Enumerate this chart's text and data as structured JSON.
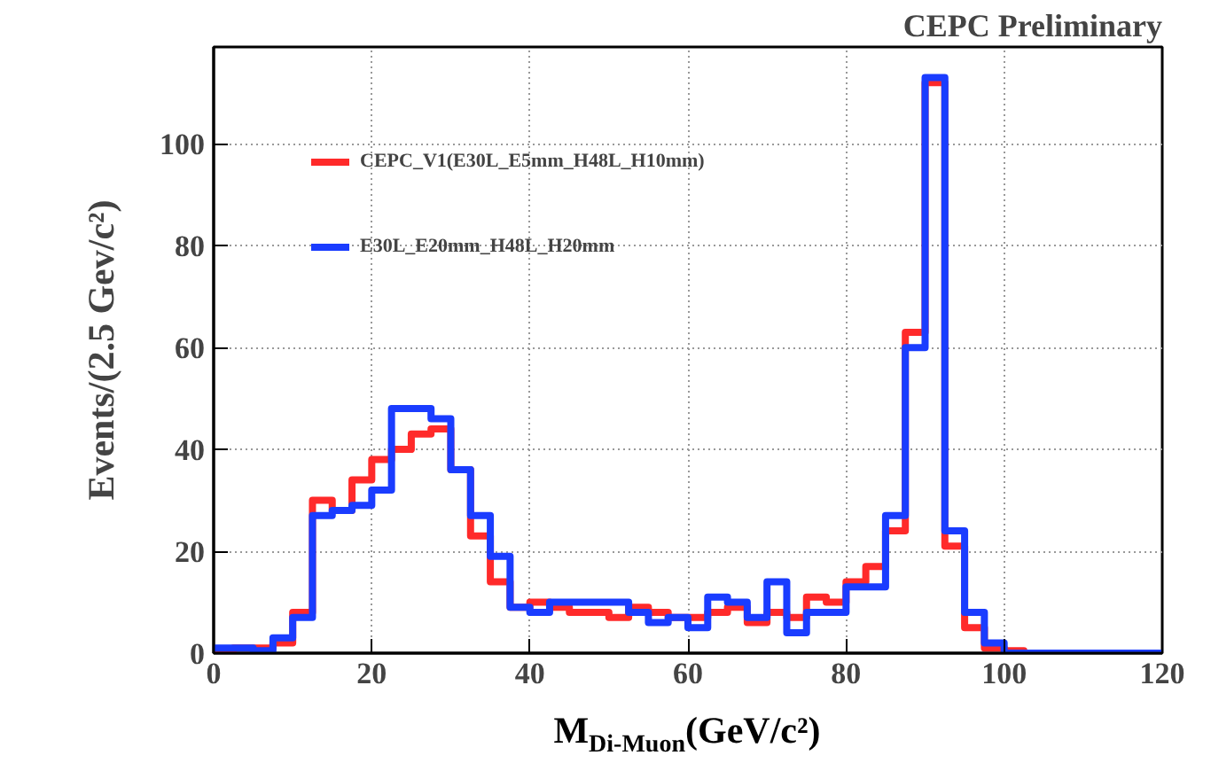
{
  "chart_data": {
    "type": "histogram",
    "title": "CEPC Preliminary",
    "xlabel": "M$_{Di-Muon}$(GeV/c²)",
    "ylabel": "Events/(2.5 Gev/c²)",
    "bins": [
      0,
      2.5,
      5,
      7.5,
      10,
      12.5,
      15,
      17.5,
      20,
      22.5,
      25,
      27.5,
      30,
      32.5,
      35,
      37.5,
      40,
      42.5,
      45,
      47.5,
      50,
      52.5,
      55,
      57.5,
      60,
      62.5,
      65,
      67.5,
      70,
      72.5,
      75,
      77.5,
      80,
      82.5,
      85,
      87.5,
      90,
      92.5,
      95,
      97.5,
      100,
      102.5,
      105,
      107.5,
      110,
      112.5,
      115,
      117.5,
      120
    ],
    "series": [
      {
        "name": "CEPC_V1(E30L_E5mm_H48L_H10mm)",
        "color": "#ff2a2a",
        "values": [
          0.5,
          1,
          1,
          2,
          8,
          30,
          28,
          34,
          38,
          40,
          43,
          44,
          36,
          23,
          14,
          9,
          10,
          9,
          8,
          8,
          7,
          9,
          8,
          7,
          7,
          8,
          9,
          6,
          8,
          7,
          11,
          10,
          14,
          17,
          24,
          63,
          112,
          21,
          5,
          1,
          0.5,
          0,
          0,
          0,
          0,
          0,
          0,
          0
        ]
      },
      {
        "name": "E30L_E20mm_H48L_H20mm",
        "color": "#1a3cff",
        "values": [
          1,
          1,
          0.5,
          3,
          7,
          27,
          28,
          29,
          32,
          48,
          48,
          46,
          36,
          27,
          19,
          9,
          8,
          10,
          10,
          10,
          10,
          8,
          6,
          7,
          5,
          11,
          10,
          7,
          14,
          4,
          8,
          8,
          13,
          13,
          27,
          60,
          113,
          24,
          8,
          2,
          0,
          0,
          0,
          0,
          0,
          0,
          0,
          0
        ]
      }
    ],
    "xlim": [
      0,
      120
    ],
    "ylim": [
      0,
      119
    ],
    "xticks": [
      0,
      20,
      40,
      60,
      80,
      100,
      120
    ],
    "yticks": [
      0,
      20,
      40,
      60,
      80,
      100
    ],
    "grid": true,
    "legend": "top left"
  }
}
